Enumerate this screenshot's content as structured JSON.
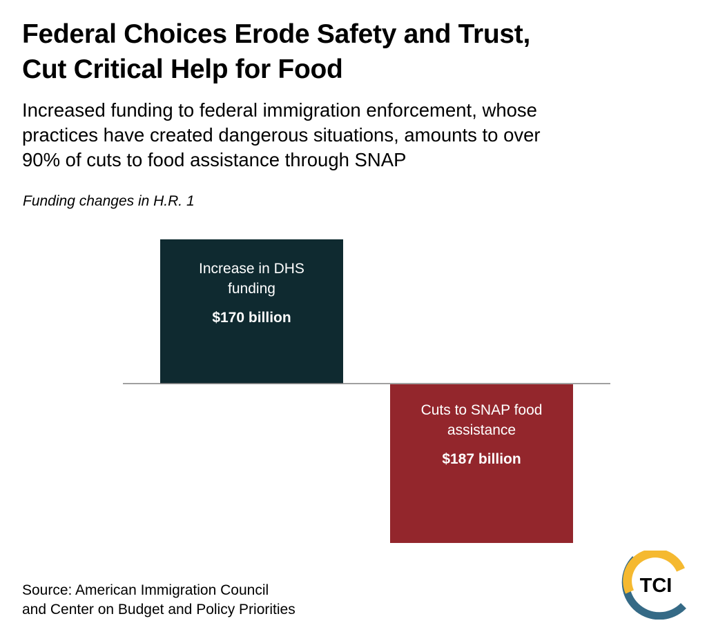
{
  "title_lines": [
    "Federal Choices Erode Safety and Trust,",
    "Cut Critical Help for Food"
  ],
  "subtitle_lines": [
    "Increased funding to federal immigration enforcement, whose",
    "practices have created dangerous situations, amounts to over",
    "90% of cuts to food assistance through SNAP"
  ],
  "chart_note": "Funding changes in H.R. 1",
  "source_lines": [
    "Source: American Immigration Council",
    "and Center on Budget and Policy Priorities"
  ],
  "logo_text": "TCI",
  "colors": {
    "increase": "#0f2a30",
    "cut": "#93262c",
    "baseline": "#808080",
    "logo_yellow": "#f5b930",
    "logo_blue": "#356a86"
  },
  "chart_data": {
    "type": "bar",
    "categories": [
      "Increase in DHS funding",
      "Cuts to SNAP food assistance"
    ],
    "values": [
      170,
      -187
    ],
    "units": "billion USD",
    "data_labels": [
      {
        "lines": [
          "Increase in DHS",
          "funding"
        ],
        "value": "$170 billion"
      },
      {
        "lines": [
          "Cuts to SNAP food",
          "assistance"
        ],
        "value": "$187 billion"
      }
    ],
    "grid": false,
    "legend": "none"
  }
}
